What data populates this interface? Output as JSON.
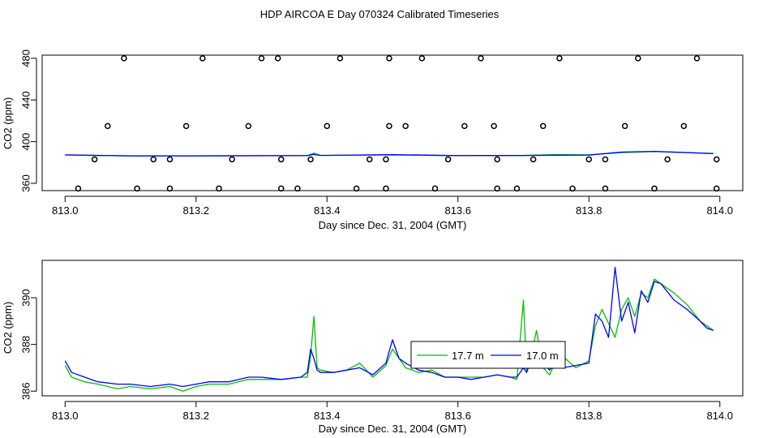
{
  "title": "HDP AIRCOA E  Day 070324  Calibrated Timeseries",
  "chart_data": [
    {
      "type": "line",
      "xlabel": "Day since Dec. 31, 2004 (GMT)",
      "ylabel": "CO2 (ppm)",
      "xlim": [
        812.965,
        814.035
      ],
      "ylim": [
        353,
        483
      ],
      "xticks": [
        "813.0",
        "813.2",
        "813.4",
        "813.6",
        "813.8",
        "814.0"
      ],
      "yticks": [
        "360",
        "400",
        "440",
        "480"
      ],
      "colors": {
        "green": "#00c000",
        "blue": "#0000ff",
        "points": "#000000"
      },
      "calibration_points": {
        "x": [
          813.02,
          813.09,
          813.11,
          813.16,
          813.21,
          813.235,
          813.3,
          813.325,
          813.33,
          813.355,
          813.42,
          813.445,
          813.495,
          813.49,
          813.545,
          813.565,
          813.635,
          813.66,
          813.69,
          813.755,
          813.775,
          813.825,
          813.875,
          813.9,
          813.965,
          813.995
        ],
        "y": [
          355,
          480,
          355,
          355,
          480,
          355,
          480,
          480,
          355,
          355,
          480,
          355,
          480,
          355,
          480,
          355,
          480,
          355,
          355,
          480,
          355,
          355,
          480,
          355,
          480,
          355
        ],
        "x_mid": [
          813.045,
          813.065,
          813.135,
          813.16,
          813.185,
          813.255,
          813.28,
          813.33,
          813.375,
          813.4,
          813.465,
          813.49,
          813.495,
          813.52,
          813.585,
          813.61,
          813.655,
          813.66,
          813.715,
          813.73,
          813.8,
          813.825,
          813.855,
          813.92,
          813.945,
          813.995
        ],
        "y_mid": [
          383,
          415,
          383,
          383,
          415,
          383,
          415,
          383,
          383,
          415,
          383,
          383,
          415,
          415,
          383,
          415,
          415,
          383,
          383,
          415,
          383,
          383,
          415,
          383,
          415,
          383
        ]
      },
      "series": [
        {
          "color": "green",
          "x": [
            813.0,
            813.1,
            813.2,
            813.3,
            813.37,
            813.38,
            813.39,
            813.5,
            813.6,
            813.7,
            813.75,
            813.8,
            813.85,
            813.9,
            813.95,
            813.99
          ],
          "y": [
            387.2,
            386.3,
            386.4,
            386.6,
            386.6,
            389.0,
            386.9,
            387.2,
            386.6,
            386.8,
            387.5,
            387.3,
            389.5,
            390.5,
            389.4,
            388.5
          ]
        },
        {
          "color": "blue",
          "x": [
            813.0,
            813.1,
            813.2,
            813.3,
            813.37,
            813.38,
            813.39,
            813.5,
            813.6,
            813.7,
            813.75,
            813.8,
            813.85,
            813.9,
            813.95,
            813.99
          ],
          "y": [
            387.3,
            386.3,
            386.3,
            386.5,
            386.6,
            387.8,
            386.8,
            387.6,
            386.6,
            386.7,
            387.0,
            387.1,
            390.0,
            390.7,
            389.5,
            388.6
          ]
        }
      ]
    },
    {
      "type": "line",
      "xlabel": "Day since Dec. 31, 2004 (GMT)",
      "ylabel": "CO2 (ppm)",
      "xlim": [
        812.965,
        814.035
      ],
      "ylim": [
        385.8,
        391.6
      ],
      "xticks": [
        "813.0",
        "813.2",
        "813.4",
        "813.6",
        "813.8",
        "814.0"
      ],
      "yticks": [
        "386",
        "388",
        "390"
      ],
      "legend": [
        "17.7 m",
        "17.0 m"
      ],
      "legend_placement": "center",
      "series": [
        {
          "name": "17.7 m",
          "color": "green",
          "x": [
            813.0,
            813.01,
            813.03,
            813.05,
            813.08,
            813.1,
            813.13,
            813.16,
            813.18,
            813.2,
            813.22,
            813.25,
            813.28,
            813.3,
            813.33,
            813.36,
            813.37,
            813.375,
            813.38,
            813.385,
            813.39,
            813.41,
            813.43,
            813.45,
            813.47,
            813.49,
            813.5,
            813.51,
            813.52,
            813.54,
            813.56,
            813.58,
            813.6,
            813.62,
            813.64,
            813.66,
            813.68,
            813.69,
            813.7,
            813.705,
            813.71,
            813.72,
            813.73,
            813.74,
            813.75,
            813.76,
            813.78,
            813.8,
            813.81,
            813.82,
            813.83,
            813.84,
            813.85,
            813.86,
            813.87,
            813.88,
            813.89,
            813.9,
            813.91,
            813.93,
            813.95,
            813.97,
            813.98,
            813.99
          ],
          "y": [
            387.1,
            386.6,
            386.4,
            386.3,
            386.1,
            386.2,
            386.1,
            386.2,
            386.0,
            386.2,
            386.3,
            386.3,
            386.5,
            386.5,
            386.5,
            386.6,
            386.6,
            387.5,
            389.2,
            387.0,
            386.9,
            386.8,
            386.9,
            387.2,
            386.6,
            387.1,
            387.8,
            387.4,
            387.0,
            386.8,
            386.9,
            386.6,
            386.6,
            386.6,
            386.6,
            386.7,
            386.6,
            386.5,
            389.9,
            386.8,
            387.3,
            388.6,
            387.0,
            386.7,
            387.3,
            387.5,
            387.0,
            387.3,
            388.8,
            389.5,
            388.9,
            388.3,
            389.5,
            390.0,
            389.2,
            390.2,
            390.0,
            390.8,
            390.6,
            390.2,
            389.7,
            389.0,
            388.8,
            388.6
          ]
        },
        {
          "name": "17.0 m",
          "color": "blue",
          "x": [
            813.0,
            813.01,
            813.03,
            813.05,
            813.08,
            813.1,
            813.13,
            813.16,
            813.18,
            813.2,
            813.22,
            813.25,
            813.28,
            813.3,
            813.33,
            813.36,
            813.37,
            813.375,
            813.38,
            813.385,
            813.39,
            813.41,
            813.43,
            813.45,
            813.47,
            813.49,
            813.5,
            813.51,
            813.52,
            813.54,
            813.56,
            813.58,
            813.6,
            813.62,
            813.64,
            813.66,
            813.68,
            813.69,
            813.7,
            813.705,
            813.71,
            813.72,
            813.73,
            813.74,
            813.75,
            813.76,
            813.78,
            813.8,
            813.81,
            813.82,
            813.83,
            813.84,
            813.85,
            813.86,
            813.87,
            813.88,
            813.89,
            813.9,
            813.91,
            813.93,
            813.95,
            813.97,
            813.98,
            813.99
          ],
          "y": [
            387.3,
            386.8,
            386.6,
            386.4,
            386.3,
            386.3,
            386.2,
            386.3,
            386.2,
            386.3,
            386.4,
            386.4,
            386.6,
            386.6,
            386.5,
            386.6,
            386.8,
            387.8,
            387.4,
            386.9,
            386.8,
            386.8,
            386.9,
            387.0,
            386.7,
            387.2,
            388.2,
            387.4,
            387.2,
            386.9,
            386.8,
            386.6,
            386.6,
            386.5,
            386.6,
            386.7,
            386.6,
            386.6,
            387.0,
            386.8,
            387.2,
            387.6,
            387.2,
            386.9,
            387.2,
            387.0,
            387.1,
            387.2,
            389.3,
            389.0,
            388.3,
            391.3,
            389.0,
            389.8,
            388.5,
            390.3,
            389.8,
            390.7,
            390.6,
            389.9,
            389.5,
            389.0,
            388.7,
            388.6
          ]
        }
      ]
    }
  ]
}
